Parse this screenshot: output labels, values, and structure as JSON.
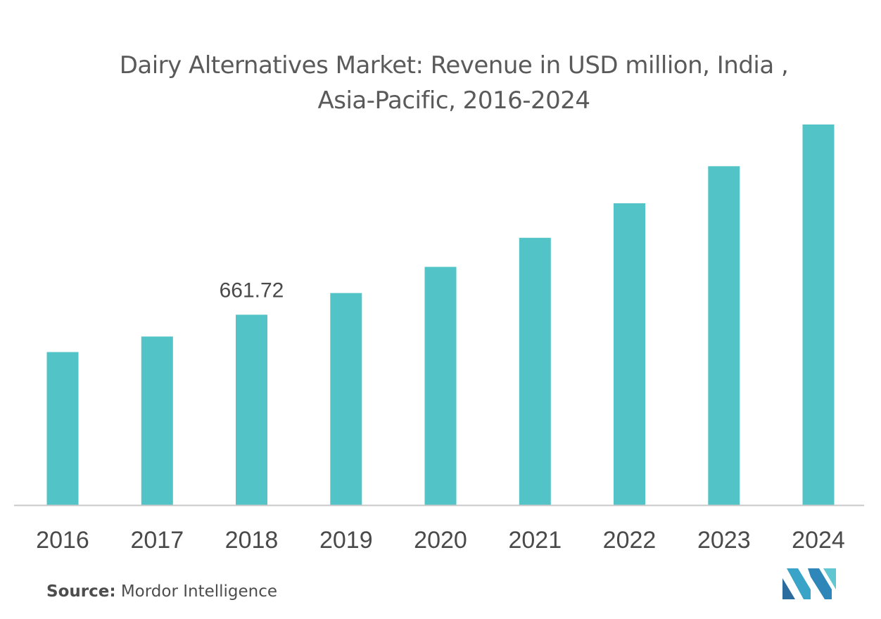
{
  "title_line1": "Dairy Alternatives Market: Revenue in USD million, India ,",
  "title_line2": "Asia-Pacific, 2016-2024",
  "source_label": "Source:",
  "source_text": "Mordor Intelligence",
  "logo_icon": "mordor-intelligence-logo-icon",
  "colors": {
    "bar": "#52c4c8",
    "axis": "#c8c8c8",
    "tick_text": "#4a4a4a",
    "title": "#5a5a5a"
  },
  "chart_data": {
    "type": "bar",
    "title": "Dairy Alternatives Market: Revenue in USD million, India , Asia-Pacific, 2016-2024",
    "xlabel": "",
    "ylabel": "",
    "categories": [
      "2016",
      "2017",
      "2018",
      "2019",
      "2020",
      "2021",
      "2022",
      "2023",
      "2024"
    ],
    "values": [
      532,
      586,
      661.72,
      737,
      828,
      929,
      1049,
      1178,
      1323
    ],
    "data_labels": [
      {
        "category": "2018",
        "text": "661.72"
      }
    ],
    "ylim": [
      0,
      1323
    ],
    "grid": false,
    "legend": "none"
  }
}
